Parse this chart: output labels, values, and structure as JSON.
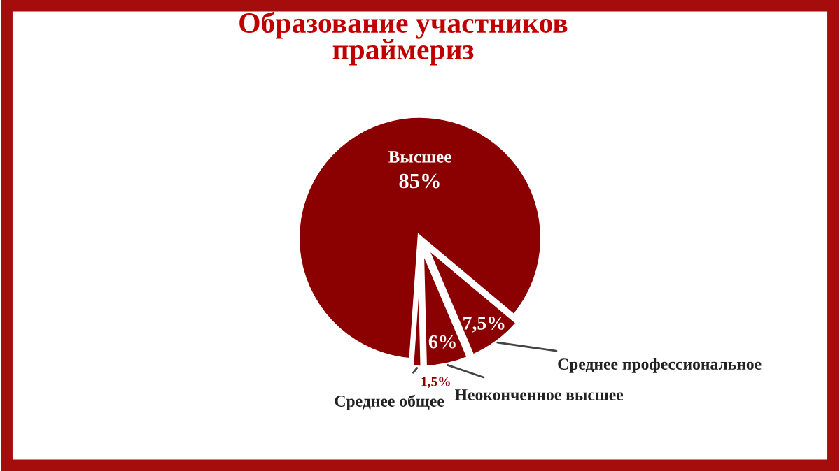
{
  "chart_data": {
    "type": "pie",
    "title": "Образование участников\nпраймериз",
    "categories": [
      "Высшее",
      "Среднее общее",
      "Неоконченное высшее",
      "Среднее профессиональное"
    ],
    "values": [
      85,
      1.5,
      6,
      7.5
    ],
    "value_labels": [
      "85%",
      "1,5%",
      "6%",
      "7,5%"
    ],
    "colors": [
      "#8b0000",
      "#8b0000",
      "#8b0000",
      "#8b0000"
    ],
    "legend": false
  }
}
